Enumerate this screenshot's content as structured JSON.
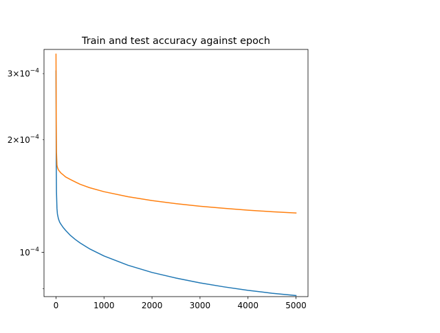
{
  "chart_data": {
    "type": "line",
    "title": "Train and test accuracy against epoch",
    "xlabel": "",
    "ylabel": "",
    "xlim": [
      -250,
      5250
    ],
    "ylim": [
      7.62e-05,
      0.000348
    ],
    "yscale": "log",
    "x_ticks": [
      {
        "value": 0,
        "label": "0"
      },
      {
        "value": 1000,
        "label": "1000"
      },
      {
        "value": 2000,
        "label": "2000"
      },
      {
        "value": 3000,
        "label": "3000"
      },
      {
        "value": 4000,
        "label": "4000"
      },
      {
        "value": 5000,
        "label": "5000"
      }
    ],
    "y_major_ticks": [
      {
        "value": 0.0001,
        "mantissa": "",
        "exp": "−4"
      }
    ],
    "y_minor_ticks": [
      {
        "value": 8e-05,
        "mantissa": "",
        "exp": ""
      },
      {
        "value": 0.0002,
        "mantissa": "2×10",
        "exp": "−4"
      },
      {
        "value": 0.0003,
        "mantissa": "3×10",
        "exp": "−4"
      }
    ],
    "grid": false,
    "legend": "none",
    "series": [
      {
        "color": "#1f77b4",
        "x": [
          0,
          5,
          10,
          20,
          30,
          50,
          75,
          100,
          150,
          200,
          300,
          400,
          500,
          700,
          1000,
          1500,
          2000,
          2500,
          3000,
          3500,
          4000,
          4500,
          5000
        ],
        "y": [
          0.000305,
          0.000175,
          0.000145,
          0.000131,
          0.0001265,
          0.000123,
          0.0001205,
          0.000119,
          0.0001165,
          0.0001145,
          0.000111,
          0.0001083,
          0.000106,
          0.0001022,
          9.78e-05,
          9.24e-05,
          8.84e-05,
          8.54e-05,
          8.29e-05,
          8.09e-05,
          7.92e-05,
          7.78e-05,
          7.67e-05
        ]
      },
      {
        "color": "#ff7f0e",
        "x": [
          0,
          5,
          10,
          20,
          30,
          50,
          75,
          100,
          150,
          200,
          300,
          400,
          500,
          700,
          1000,
          1500,
          2000,
          2500,
          3000,
          3500,
          4000,
          4500,
          5000
        ],
        "y": [
          0.000338,
          0.000225,
          0.000185,
          0.000171,
          0.0001685,
          0.000166,
          0.0001645,
          0.000163,
          0.000161,
          0.000159,
          0.0001565,
          0.0001542,
          0.000152,
          0.0001488,
          0.0001452,
          0.0001408,
          0.0001375,
          0.0001349,
          0.0001328,
          0.0001311,
          0.0001296,
          0.0001284,
          0.0001274
        ]
      }
    ]
  }
}
